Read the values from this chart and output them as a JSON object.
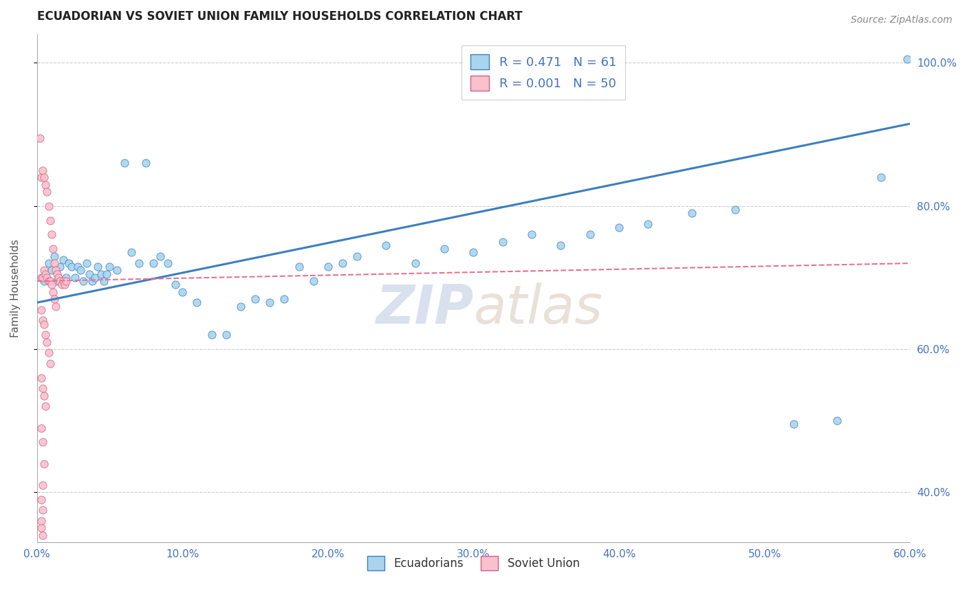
{
  "title": "ECUADORIAN VS SOVIET UNION FAMILY HOUSEHOLDS CORRELATION CHART",
  "source_text": "Source: ZipAtlas.com",
  "ylabel_left": "Family Households",
  "x_min": 0.0,
  "x_max": 0.6,
  "y_min": 0.33,
  "y_max": 1.04,
  "legend_label_blue": "R = 0.471   N = 61",
  "legend_label_pink": "R = 0.001   N = 50",
  "legend_bottom_blue": "Ecuadorians",
  "legend_bottom_pink": "Soviet Union",
  "watermark_zip": "ZIP",
  "watermark_atlas": "atlas",
  "blue_color": "#A8D4EE",
  "pink_color": "#F9C0CE",
  "blue_line_color": "#3B7EC0",
  "pink_line_color": "#E87090",
  "title_color": "#222222",
  "axis_label_color": "#4472C4",
  "grid_color": "#CCCCCC",
  "blue_trend_x0": 0.0,
  "blue_trend_y0": 0.665,
  "blue_trend_x1": 0.6,
  "blue_trend_y1": 0.915,
  "pink_trend_x0": 0.0,
  "pink_trend_y0": 0.695,
  "pink_trend_x1": 0.6,
  "pink_trend_y1": 0.72,
  "blue_scatter_x": [
    0.005,
    0.008,
    0.01,
    0.012,
    0.014,
    0.016,
    0.018,
    0.02,
    0.022,
    0.024,
    0.026,
    0.028,
    0.03,
    0.032,
    0.034,
    0.036,
    0.038,
    0.04,
    0.042,
    0.044,
    0.046,
    0.048,
    0.05,
    0.055,
    0.06,
    0.065,
    0.07,
    0.075,
    0.08,
    0.085,
    0.09,
    0.095,
    0.1,
    0.11,
    0.12,
    0.13,
    0.14,
    0.15,
    0.16,
    0.17,
    0.18,
    0.19,
    0.2,
    0.21,
    0.22,
    0.24,
    0.26,
    0.28,
    0.3,
    0.32,
    0.34,
    0.36,
    0.38,
    0.4,
    0.42,
    0.45,
    0.48,
    0.52,
    0.55,
    0.58,
    0.598
  ],
  "blue_scatter_y": [
    0.695,
    0.72,
    0.71,
    0.73,
    0.695,
    0.715,
    0.725,
    0.7,
    0.72,
    0.715,
    0.7,
    0.715,
    0.71,
    0.695,
    0.72,
    0.705,
    0.695,
    0.7,
    0.715,
    0.705,
    0.695,
    0.705,
    0.715,
    0.71,
    0.86,
    0.735,
    0.72,
    0.86,
    0.72,
    0.73,
    0.72,
    0.69,
    0.68,
    0.665,
    0.62,
    0.62,
    0.66,
    0.67,
    0.665,
    0.67,
    0.715,
    0.695,
    0.715,
    0.72,
    0.73,
    0.745,
    0.72,
    0.74,
    0.735,
    0.75,
    0.76,
    0.745,
    0.76,
    0.77,
    0.775,
    0.79,
    0.795,
    0.495,
    0.5,
    0.84,
    1.005
  ],
  "pink_scatter_x": [
    0.002,
    0.003,
    0.004,
    0.005,
    0.006,
    0.007,
    0.008,
    0.009,
    0.01,
    0.011,
    0.012,
    0.013,
    0.014,
    0.015,
    0.016,
    0.017,
    0.018,
    0.019,
    0.02,
    0.003,
    0.004,
    0.005,
    0.006,
    0.007,
    0.008,
    0.009,
    0.01,
    0.011,
    0.012,
    0.013,
    0.003,
    0.004,
    0.005,
    0.006,
    0.007,
    0.008,
    0.009,
    0.003,
    0.004,
    0.005,
    0.006,
    0.003,
    0.004,
    0.005,
    0.004,
    0.003,
    0.004,
    0.003,
    0.003,
    0.004
  ],
  "pink_scatter_y": [
    0.895,
    0.84,
    0.85,
    0.84,
    0.83,
    0.82,
    0.8,
    0.78,
    0.76,
    0.74,
    0.72,
    0.71,
    0.705,
    0.7,
    0.695,
    0.69,
    0.695,
    0.69,
    0.695,
    0.7,
    0.7,
    0.71,
    0.705,
    0.7,
    0.695,
    0.695,
    0.69,
    0.68,
    0.67,
    0.66,
    0.655,
    0.64,
    0.635,
    0.62,
    0.61,
    0.595,
    0.58,
    0.56,
    0.545,
    0.535,
    0.52,
    0.49,
    0.47,
    0.44,
    0.41,
    0.39,
    0.375,
    0.36,
    0.35,
    0.34
  ]
}
